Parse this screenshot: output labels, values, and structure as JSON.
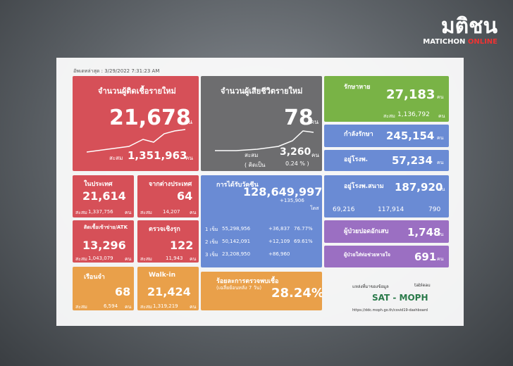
{
  "header": {
    "logo": "มติชน",
    "brand": "MATICHON",
    "brand_tag": "ONLINE"
  },
  "dashboard": {
    "updated": "อัพเดทล่าสุด : 3/29/2022 7:31:23 AM",
    "new_cases": {
      "title": "จำนวนผู้ติดเชื้อรายใหม่",
      "value": "21,678",
      "unit": "คน",
      "cumulative_label": "สะสม",
      "cumulative": "1,351,963",
      "cumulative_unit": "คน"
    },
    "deaths": {
      "title": "จำนวนผู้เสียชีวิตรายใหม่",
      "value": "78",
      "unit": "คน",
      "cumulative_label": "สะสม",
      "cumulative": "3,260",
      "cumulative_unit": "คน",
      "rate_label": "( คิดเป็น",
      "rate": "0.24 % )"
    },
    "recovered": {
      "title": "รักษาหาย",
      "value": "27,183",
      "unit": "คน",
      "cumulative_label": "สะสม",
      "cumulative": "1,136,792",
      "cumulative_unit": "คน"
    },
    "treating": {
      "title": "กำลังรักษา",
      "value": "245,154",
      "unit": "คน"
    },
    "hospital": {
      "title": "อยู่โรงพ.",
      "value": "57,234",
      "unit": "คน"
    },
    "field_hospital": {
      "title": "อยู่โรงพ.สนาม",
      "value": "187,920",
      "unit": "คน",
      "sub_values": [
        "69,216",
        "117,914",
        "790"
      ]
    },
    "pneumonia": {
      "title": "ผู้ป่วยปอดอักเสบ",
      "value": "1,748",
      "unit": "คน"
    },
    "ventilator": {
      "title": "ผู้ป่วยใส่ท่อช่วยหายใจ",
      "value": "691",
      "unit": "คน"
    },
    "domestic": {
      "title": "ในประเทศ",
      "value": "21,614",
      "cumulative_label": "สะสม",
      "cumulative": "1,337,756",
      "unit": "คน"
    },
    "abroad": {
      "title": "จากต่างประเทศ",
      "value": "64",
      "cumulative_label": "สะสม",
      "cumulative": "14,207",
      "unit": "คน"
    },
    "atk": {
      "title": "ติดเชื้อเข้าข่าย/ATK",
      "value": "13,296",
      "cumulative_label": "สะสม",
      "cumulative": "1,043,079",
      "unit": "คน"
    },
    "active_search": {
      "title": "ตรวจเชิงรุก",
      "value": "122",
      "cumulative_label": "สะสม",
      "cumulative": "11,943",
      "unit": "คน"
    },
    "prison": {
      "title": "เรือนจำ",
      "value": "68",
      "cumulative_label": "สะสม",
      "cumulative": "6,594",
      "unit": "คน"
    },
    "walk_in": {
      "title": "Walk-in",
      "value": "21,424",
      "cumulative_label": "สะสม",
      "cumulative": "1,319,219",
      "unit": "คน"
    },
    "vaccine": {
      "title": "การได้รับวัคซีน",
      "value": "128,649,997",
      "daily": "+135,906",
      "unit": "โดส",
      "rows": [
        [
          "1 เข็ม",
          "55,298,956",
          "+36,837",
          "76.77%"
        ],
        [
          "2 เข็ม",
          "50,142,091",
          "+12,109",
          "69.61%"
        ],
        [
          "3 เข็ม",
          "23,208,950",
          "+86,960"
        ]
      ]
    },
    "positivity": {
      "title": "ร้อยละการตรวจพบเชื้อ",
      "subtitle": "(เฉลี่ยย้อนหลัง 7 วัน)",
      "value": "28.24%"
    },
    "source": {
      "label": "แหล่งที่มาของข้อมูล",
      "tool": "tableau",
      "name": "SAT - MOPH",
      "url": "https://ddc.moph.go.th/covid19-dashboard"
    }
  }
}
